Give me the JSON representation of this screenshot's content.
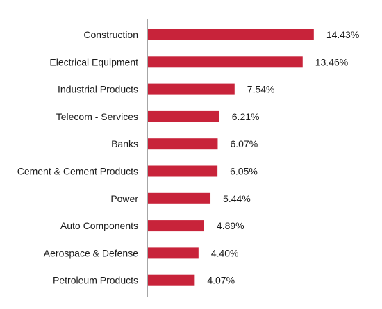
{
  "chart_data": {
    "type": "bar",
    "orientation": "horizontal",
    "categories": [
      "Construction",
      "Electrical Equipment",
      "Industrial Products",
      "Telecom - Services",
      "Banks",
      "Cement & Cement Products",
      "Power",
      "Auto Components",
      "Aerospace & Defense",
      "Petroleum Products"
    ],
    "values": [
      14.43,
      13.46,
      7.54,
      6.21,
      6.07,
      6.05,
      5.44,
      4.89,
      4.4,
      4.07
    ],
    "value_labels": [
      "14.43%",
      "13.46%",
      "7.54%",
      "6.21%",
      "6.07%",
      "6.05%",
      "5.44%",
      "4.89%",
      "4.40%",
      "4.07%"
    ],
    "title": "",
    "xlabel": "",
    "ylabel": "",
    "grid": false,
    "legend": "none",
    "bar_color": "#c8233a",
    "axis_color": "#888888"
  }
}
